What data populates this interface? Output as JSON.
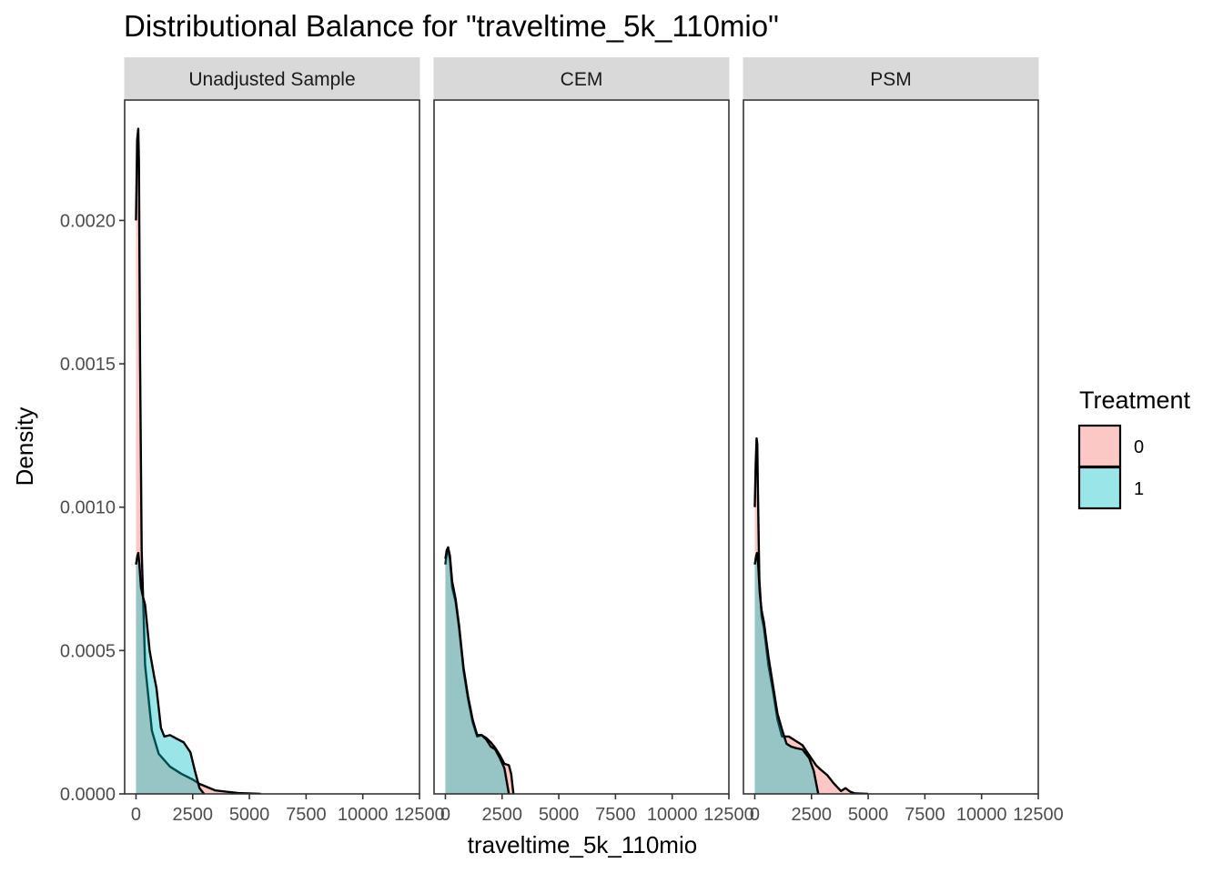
{
  "chart_data": {
    "type": "area",
    "title": "Distributional Balance for \"traveltime_5k_110mio\"",
    "xlabel": "traveltime_5k_110mio",
    "ylabel": "Density",
    "xlim": [
      -500,
      12500
    ],
    "ylim": [
      0,
      0.00242
    ],
    "x_ticks": [
      0,
      2500,
      5000,
      7500,
      10000,
      12500
    ],
    "x_tick_labels": [
      "0",
      "2500",
      "5000",
      "7500",
      "10000",
      "12500"
    ],
    "y_ticks": [
      0,
      0.0005,
      0.001,
      0.0015,
      0.002
    ],
    "y_tick_labels": [
      "0.0000",
      "0.0005",
      "0.0010",
      "0.0015",
      "0.0020"
    ],
    "grid": false,
    "legend": {
      "title": "Treatment",
      "position": "right",
      "entries": [
        {
          "label": "0",
          "color": "#F8766D"
        },
        {
          "label": "1",
          "color": "#00BFC4"
        }
      ]
    },
    "fill_opacity": 0.4,
    "panels": [
      {
        "strip": "Unadjusted Sample",
        "series": [
          {
            "name": "0",
            "x": [
              0,
              50,
              100,
              130,
              180,
              250,
              400,
              700,
              1000,
              1500,
              2000,
              2500,
              2800,
              3500,
              4500,
              5500
            ],
            "y": [
              0.002,
              0.00228,
              0.00232,
              0.0022,
              0.0015,
              0.00085,
              0.00045,
              0.00022,
              0.00014,
              9.5e-05,
              7e-05,
              5e-05,
              3.5e-05,
              1.2e-05,
              3e-06,
              0
            ]
          },
          {
            "name": "1",
            "x": [
              0,
              60,
              100,
              150,
              220,
              300,
              400,
              600,
              800,
              900,
              1100,
              1250,
              1500,
              1800,
              2100,
              2400,
              2600,
              2800,
              3000
            ],
            "y": [
              0.0008,
              0.00083,
              0.00084,
              0.0008,
              0.00072,
              0.00069,
              0.00066,
              0.0005,
              0.00041,
              0.00037,
              0.00023,
              0.0002,
              0.000205,
              0.000192,
              0.00018,
              0.000145,
              8e-05,
              2e-05,
              0
            ]
          }
        ]
      },
      {
        "strip": "CEM",
        "series": [
          {
            "name": "0",
            "x": [
              0,
              60,
              120,
              200,
              300,
              450,
              600,
              800,
              1000,
              1200,
              1400,
              1600,
              1800,
              2000,
              2200,
              2400,
              2600,
              2800,
              2900,
              3000
            ],
            "y": [
              0.0008,
              0.00084,
              0.00085,
              0.00082,
              0.00072,
              0.00067,
              0.00058,
              0.00043,
              0.00033,
              0.00025,
              0.0002,
              0.000205,
              0.000195,
              0.00018,
              0.00016,
              0.000135,
              0.000105,
              0.0001,
              7e-05,
              0
            ]
          },
          {
            "name": "1",
            "x": [
              0,
              60,
              120,
              200,
              300,
              450,
              600,
              800,
              1000,
              1200,
              1400,
              1600,
              1800,
              2000,
              2200,
              2400,
              2600,
              2800
            ],
            "y": [
              0.00082,
              0.00085,
              0.00086,
              0.00083,
              0.00074,
              0.00068,
              0.00059,
              0.00044,
              0.00034,
              0.00026,
              0.000205,
              0.000205,
              0.00019,
              0.000165,
              0.000155,
              0.000125,
              9e-05,
              0
            ]
          }
        ]
      },
      {
        "strip": "PSM",
        "series": [
          {
            "name": "0",
            "x": [
              0,
              40,
              80,
              110,
              140,
              200,
              300,
              400,
              600,
              800,
              1000,
              1200,
              1500,
              1800,
              2100,
              2400,
              2700,
              2900,
              3200,
              3500,
              3800,
              4000,
              4200,
              4400,
              4700,
              5000
            ],
            "y": [
              0.001,
              0.00115,
              0.00124,
              0.00122,
              0.00105,
              0.00075,
              0.00062,
              0.00058,
              0.00045,
              0.00036,
              0.00026,
              0.0002,
              0.0002,
              0.000185,
              0.00017,
              0.000135,
              0.0001,
              8.5e-05,
              6.5e-05,
              3.5e-05,
              1e-05,
              2e-05,
              8e-06,
              2e-06,
              1e-06,
              0
            ]
          },
          {
            "name": "1",
            "x": [
              0,
              60,
              100,
              150,
              220,
              300,
              400,
              600,
              800,
              1000,
              1200,
              1400,
              1600,
              1800,
              2100,
              2400,
              2600,
              2800
            ],
            "y": [
              0.0008,
              0.00083,
              0.00084,
              0.0008,
              0.0007,
              0.00064,
              0.0006,
              0.00048,
              0.00038,
              0.00028,
              0.000225,
              0.000175,
              0.000165,
              0.00016,
              0.000155,
              0.000125,
              8e-05,
              0
            ]
          }
        ]
      }
    ]
  }
}
